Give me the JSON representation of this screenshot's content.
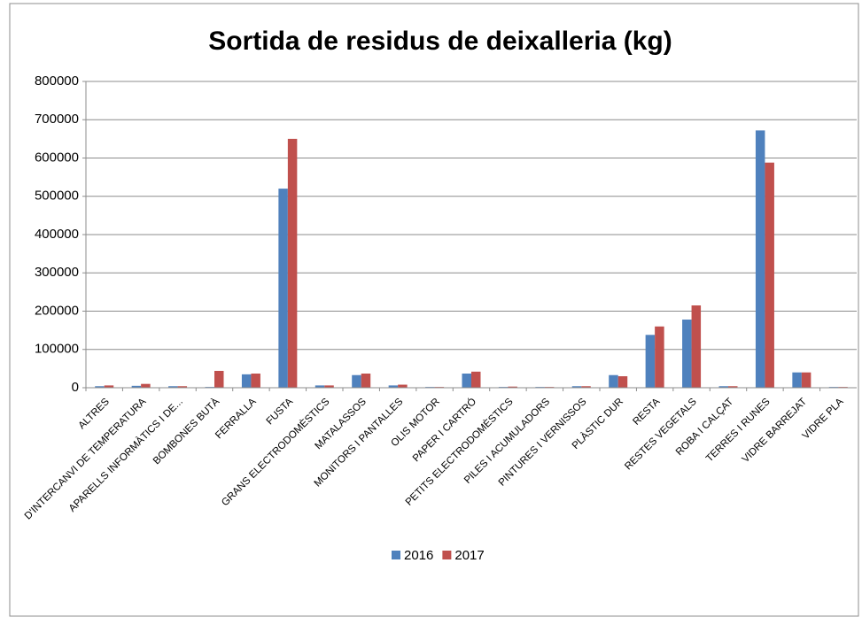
{
  "chart_data": {
    "type": "bar",
    "title": "Sortida de residus de deixalleria (kg)",
    "categories": [
      "ALTRES",
      "D'INTERCANVI DE TEMPERATURA",
      "APARELLS INFORMÀTICS I DE...",
      "BOMBONES BUTÀ",
      "FERRALLA",
      "FUSTA",
      "GRANS ELECTRODOMÈSTICS",
      "MATALASSOS",
      "MONITORS I PANTALLES",
      "OLIS MOTOR",
      "PAPER I CARTRÓ",
      "PETITS ELECTRODOMÈSTICS",
      "PILES I ACUMULADORS",
      "PINTURES I VERNISSOS",
      "PLÀSTIC DUR",
      "RESTA",
      "RESTES VEGETALS",
      "ROBA I CALÇAT",
      "TERRES I RUNES",
      "VIDRE BARREJAT",
      "VIDRE PLA"
    ],
    "series": [
      {
        "name": "2016",
        "color": "#4f81bd",
        "values": [
          4000,
          5000,
          4000,
          2000,
          35000,
          520000,
          6000,
          33000,
          6000,
          2000,
          37000,
          2000,
          2000,
          4000,
          33000,
          138000,
          178000,
          4000,
          672000,
          40000,
          2000
        ]
      },
      {
        "name": "2017",
        "color": "#c0504d",
        "values": [
          6000,
          10000,
          4000,
          44000,
          37000,
          650000,
          6000,
          37000,
          8000,
          2000,
          42000,
          3000,
          2000,
          4000,
          30000,
          160000,
          215000,
          4000,
          588000,
          40000,
          2000
        ]
      }
    ],
    "ylim": [
      0,
      800000
    ],
    "yticks": [
      0,
      100000,
      200000,
      300000,
      400000,
      500000,
      600000,
      700000,
      800000
    ],
    "grid": true,
    "legend": "bottom"
  }
}
